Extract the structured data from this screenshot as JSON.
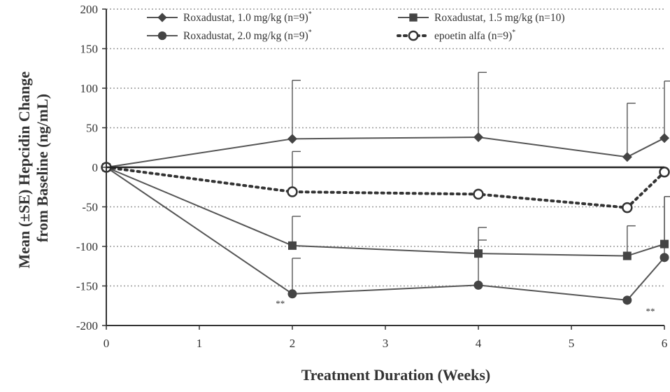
{
  "chart_data": {
    "type": "line",
    "title": "",
    "xlabel": "Treatment Duration (Weeks)",
    "ylabel_lines": [
      "Mean (±SE) Hepcidin Change",
      "from Baseline (ng/mL)"
    ],
    "xlim": [
      0,
      6
    ],
    "ylim": [
      -200,
      200
    ],
    "x_ticks": [
      0,
      1,
      2,
      3,
      4,
      5,
      6
    ],
    "y_ticks": [
      200,
      150,
      100,
      50,
      0,
      -50,
      -100,
      -150,
      -200
    ],
    "grid": "horizontal dotted",
    "legend_position": "top",
    "series": [
      {
        "name": "Roxadustat, 1.0 mg/kg (n=9)",
        "name_sup": "*",
        "marker": "diamond",
        "line": "solid",
        "color": "#555555",
        "x": [
          0,
          2,
          4,
          5.6,
          6
        ],
        "y": [
          0,
          36,
          38,
          13,
          37
        ],
        "se": [
          0,
          74,
          82,
          68,
          72
        ]
      },
      {
        "name": "Roxadustat, 1.5 mg/kg (n=10)",
        "name_sup": "",
        "marker": "square",
        "line": "solid",
        "color": "#555555",
        "x": [
          0,
          2,
          4,
          5.6,
          6
        ],
        "y": [
          0,
          -99,
          -109,
          -112,
          -97
        ],
        "se": [
          0,
          37,
          33,
          38,
          60
        ]
      },
      {
        "name": "Roxadustat, 2.0 mg/kg (n=9)",
        "name_sup": "*",
        "marker": "circle",
        "line": "solid",
        "color": "#555555",
        "x": [
          0,
          2,
          4,
          5.6,
          6
        ],
        "y": [
          0,
          -160,
          -149,
          -168,
          -114
        ],
        "se": [
          0,
          45,
          57,
          0,
          77
        ]
      },
      {
        "name": "epoetin alfa (n=9)",
        "name_sup": "*",
        "marker": "open-circle",
        "line": "dotted",
        "color": "#333333",
        "x": [
          0,
          2,
          4,
          5.6,
          6
        ],
        "y": [
          0,
          -31,
          -34,
          -51,
          -6
        ],
        "se": [
          0,
          51,
          0,
          0,
          0
        ]
      }
    ],
    "annotations": [
      {
        "text": "**",
        "x": 1.87,
        "y": -176
      },
      {
        "text": "**",
        "x": 5.85,
        "y": -186
      }
    ]
  }
}
